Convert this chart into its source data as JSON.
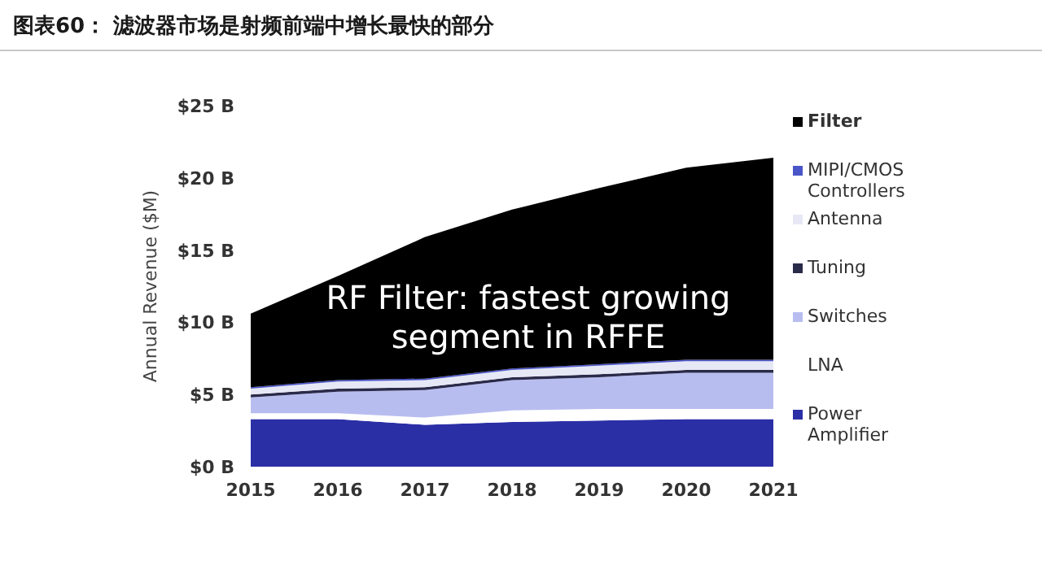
{
  "chart_data": {
    "type": "area",
    "stacked": true,
    "title": "图表60： 滤波器市场是射频前端中增长最快的部分",
    "ylabel": "Annual Revenue ($M)",
    "x": [
      2015,
      2016,
      2017,
      2018,
      2019,
      2020,
      2021
    ],
    "xlim": [
      2015,
      2021
    ],
    "xticks": [
      2015,
      2016,
      2017,
      2018,
      2019,
      2020,
      2021
    ],
    "ylim": [
      0,
      25
    ],
    "yticks": [
      {
        "value": 0,
        "label": "$0 B"
      },
      {
        "value": 5,
        "label": "$5 B"
      },
      {
        "value": 10,
        "label": "$10 B"
      },
      {
        "value": 15,
        "label": "$15 B"
      },
      {
        "value": 20,
        "label": "$20 B"
      },
      {
        "value": 25,
        "label": "$25 B"
      }
    ],
    "legend": "right",
    "annotations": [
      "RF Filter: fastest growing segment in RFFE"
    ],
    "series": [
      {
        "name": "Power Amplifier",
        "color": "#2b2fa6",
        "values": [
          3.3,
          3.3,
          2.9,
          3.1,
          3.2,
          3.3,
          3.3
        ]
      },
      {
        "name": "LNA",
        "color": "#ffffff",
        "values": [
          0.4,
          0.4,
          0.5,
          0.8,
          0.8,
          0.7,
          0.7
        ]
      },
      {
        "name": "Switches",
        "color": "#b8bdf0",
        "values": [
          1.1,
          1.5,
          1.9,
          2.1,
          2.2,
          2.5,
          2.5
        ]
      },
      {
        "name": "Tuning",
        "color": "#2a2a4a",
        "values": [
          0.2,
          0.2,
          0.2,
          0.2,
          0.2,
          0.2,
          0.2
        ]
      },
      {
        "name": "Antenna",
        "color": "#e6e8f5",
        "values": [
          0.4,
          0.5,
          0.5,
          0.5,
          0.6,
          0.6,
          0.6
        ]
      },
      {
        "name": "MIPI/CMOS Controllers",
        "color": "#4a55c8",
        "values": [
          0.1,
          0.1,
          0.1,
          0.1,
          0.1,
          0.1,
          0.1
        ]
      },
      {
        "name": "Filter",
        "color": "#000000",
        "values": [
          5.1,
          7.2,
          9.8,
          11.0,
          12.2,
          13.3,
          14.0
        ]
      }
    ]
  }
}
